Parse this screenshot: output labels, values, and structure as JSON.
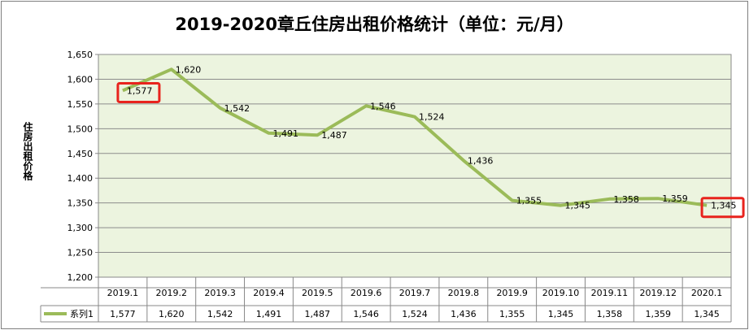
{
  "chart_data": {
    "type": "line",
    "title": "2019-2020章丘住房出租价格统计（单位：元/月）",
    "ylabel": "住房出租价格",
    "xlabel": "",
    "categories": [
      "2019.1",
      "2019.2",
      "2019.3",
      "2019.4",
      "2019.5",
      "2019.6",
      "2019.7",
      "2019.8",
      "2019.9",
      "2019.10",
      "2019.11",
      "2019.12",
      "2020.1"
    ],
    "series": [
      {
        "name": "系列1",
        "values": [
          1577,
          1620,
          1542,
          1491,
          1487,
          1546,
          1524,
          1436,
          1355,
          1345,
          1358,
          1359,
          1345
        ],
        "labels": [
          "1,577",
          "1,620",
          "1,542",
          "1,491",
          "1,487",
          "1,546",
          "1,524",
          "1,436",
          "1,355",
          "1,345",
          "1,358",
          "1,359",
          "1,345"
        ],
        "color": "#9bbb59"
      }
    ],
    "ylim": [
      1200,
      1650
    ],
    "yticks": [
      "1,200",
      "1,250",
      "1,300",
      "1,350",
      "1,400",
      "1,450",
      "1,500",
      "1,550",
      "1,600",
      "1,650"
    ],
    "grid": true,
    "legend": "data-table",
    "plot_background": "#ecf4df",
    "highlight_color": "#e8231d",
    "highlighted_points": [
      "2019.1",
      "2020.1"
    ]
  }
}
